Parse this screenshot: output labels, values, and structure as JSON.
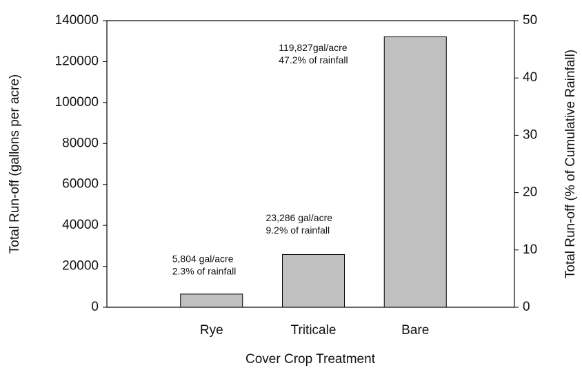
{
  "chart_data": {
    "type": "bar",
    "categories": [
      "Rye",
      "Triticale",
      "Bare"
    ],
    "series": [
      {
        "name": "Total Run-off",
        "color": "#c0c0c0",
        "axis": "y2",
        "values": [
          2.3,
          9.2,
          47.2
        ],
        "value_labels": [
          "2.3% of rainfall",
          "9.2% of rainfall",
          "47.2% of rainfall"
        ]
      }
    ],
    "annotations": [
      "5,804 gal/acre",
      "23,286 gal/acre",
      "119,827gal/acre"
    ],
    "xlabel": "Cover Crop Treatment",
    "ylabel": "Total Run-off (gallons per acre)",
    "y2label": "Total Run-off (% of Cumulative Rainfall)",
    "ylim": [
      0,
      140000
    ],
    "yticks": [
      0,
      20000,
      40000,
      60000,
      80000,
      100000,
      120000,
      140000
    ],
    "y2lim": [
      0,
      50
    ],
    "y2ticks": [
      0,
      10,
      20,
      30,
      40,
      50
    ],
    "grid": false
  }
}
